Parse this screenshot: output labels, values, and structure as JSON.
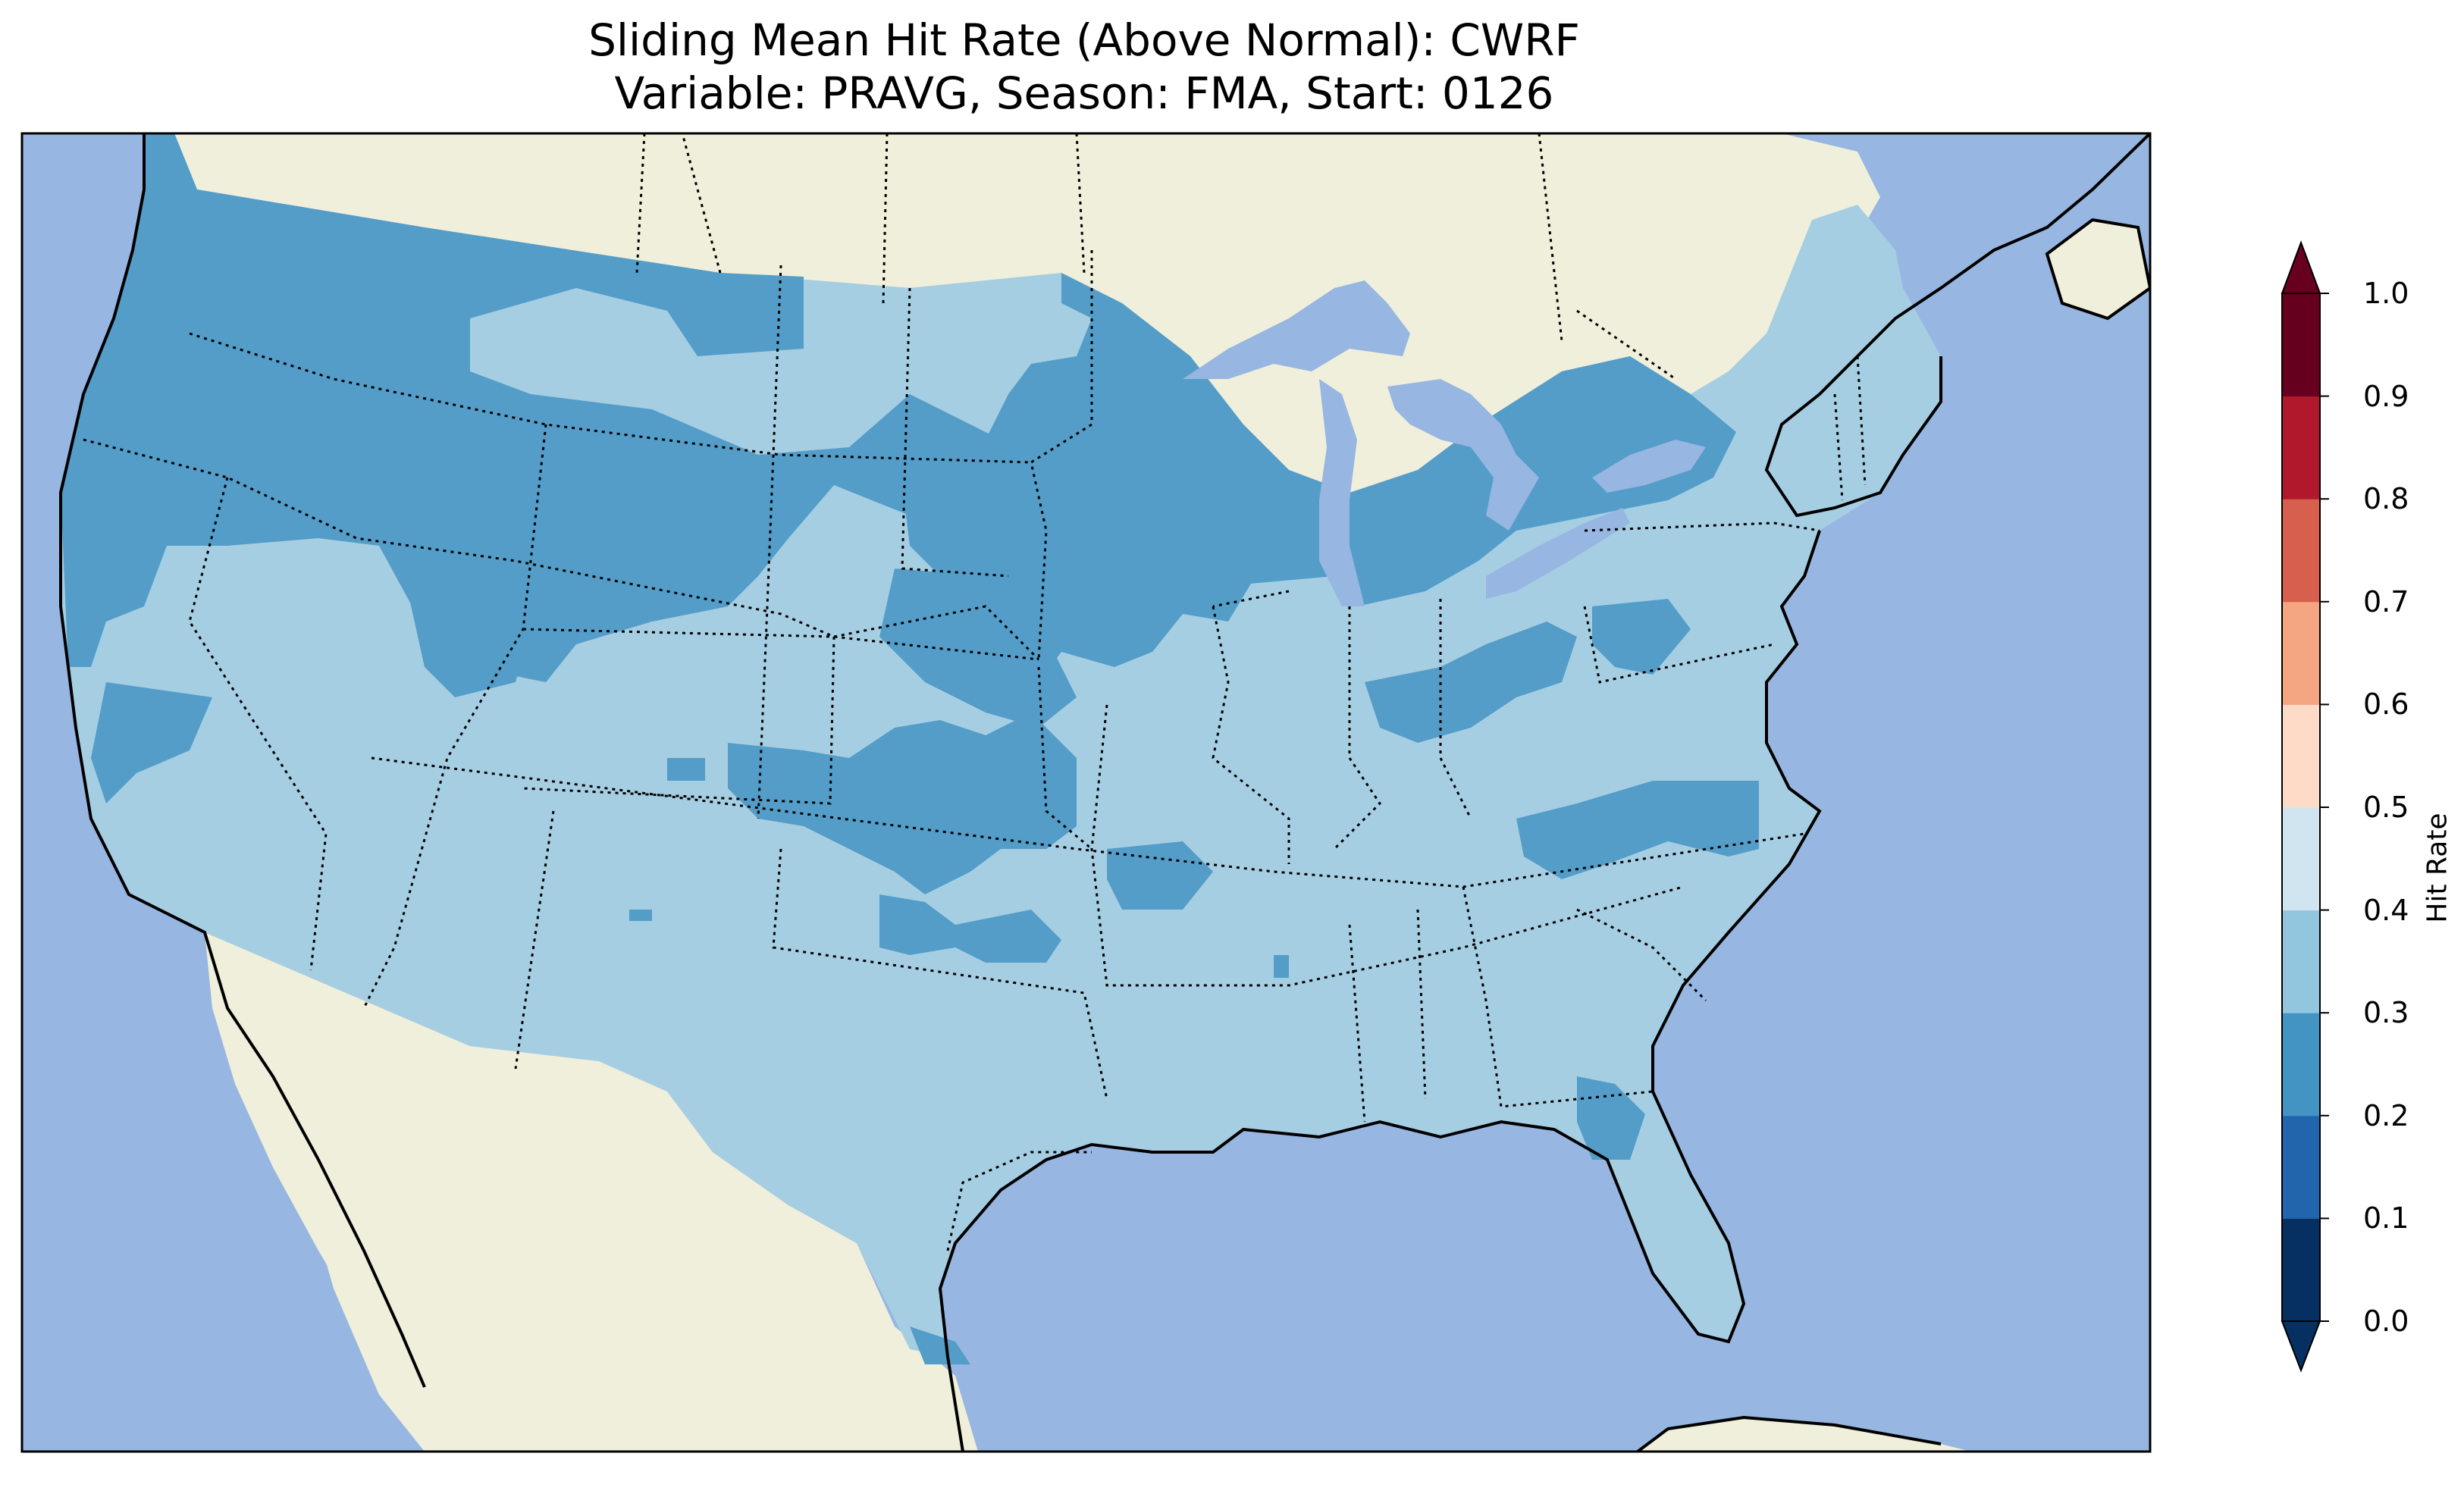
{
  "title": {
    "line1": "Sliding Mean Hit Rate (Above Normal): CWRF",
    "line2": "Variable: PRAVG, Season: FMA, Start: 0126"
  },
  "colors": {
    "ocean": "#97b6e1",
    "land": "#efefdb",
    "hit_0_2_0_3": "#539dc8",
    "hit_0_3_0_4": "#a6cee3"
  },
  "colorbar": {
    "label": "Hit Rate",
    "ticks": [
      "0.0",
      "0.1",
      "0.2",
      "0.3",
      "0.4",
      "0.5",
      "0.6",
      "0.7",
      "0.8",
      "0.9",
      "1.0"
    ],
    "bins": [
      {
        "range": [
          0.0,
          0.1
        ],
        "color": "#053061"
      },
      {
        "range": [
          0.1,
          0.2
        ],
        "color": "#2166ac"
      },
      {
        "range": [
          0.2,
          0.3
        ],
        "color": "#4393c3"
      },
      {
        "range": [
          0.3,
          0.4
        ],
        "color": "#92c5de"
      },
      {
        "range": [
          0.4,
          0.5
        ],
        "color": "#d1e5f0"
      },
      {
        "range": [
          0.5,
          0.6
        ],
        "color": "#fddbc7"
      },
      {
        "range": [
          0.6,
          0.7
        ],
        "color": "#f4a582"
      },
      {
        "range": [
          0.7,
          0.8
        ],
        "color": "#d6604d"
      },
      {
        "range": [
          0.8,
          0.9
        ],
        "color": "#b2182b"
      },
      {
        "range": [
          0.9,
          1.0
        ],
        "color": "#67001f"
      }
    ],
    "extend": "both"
  }
}
